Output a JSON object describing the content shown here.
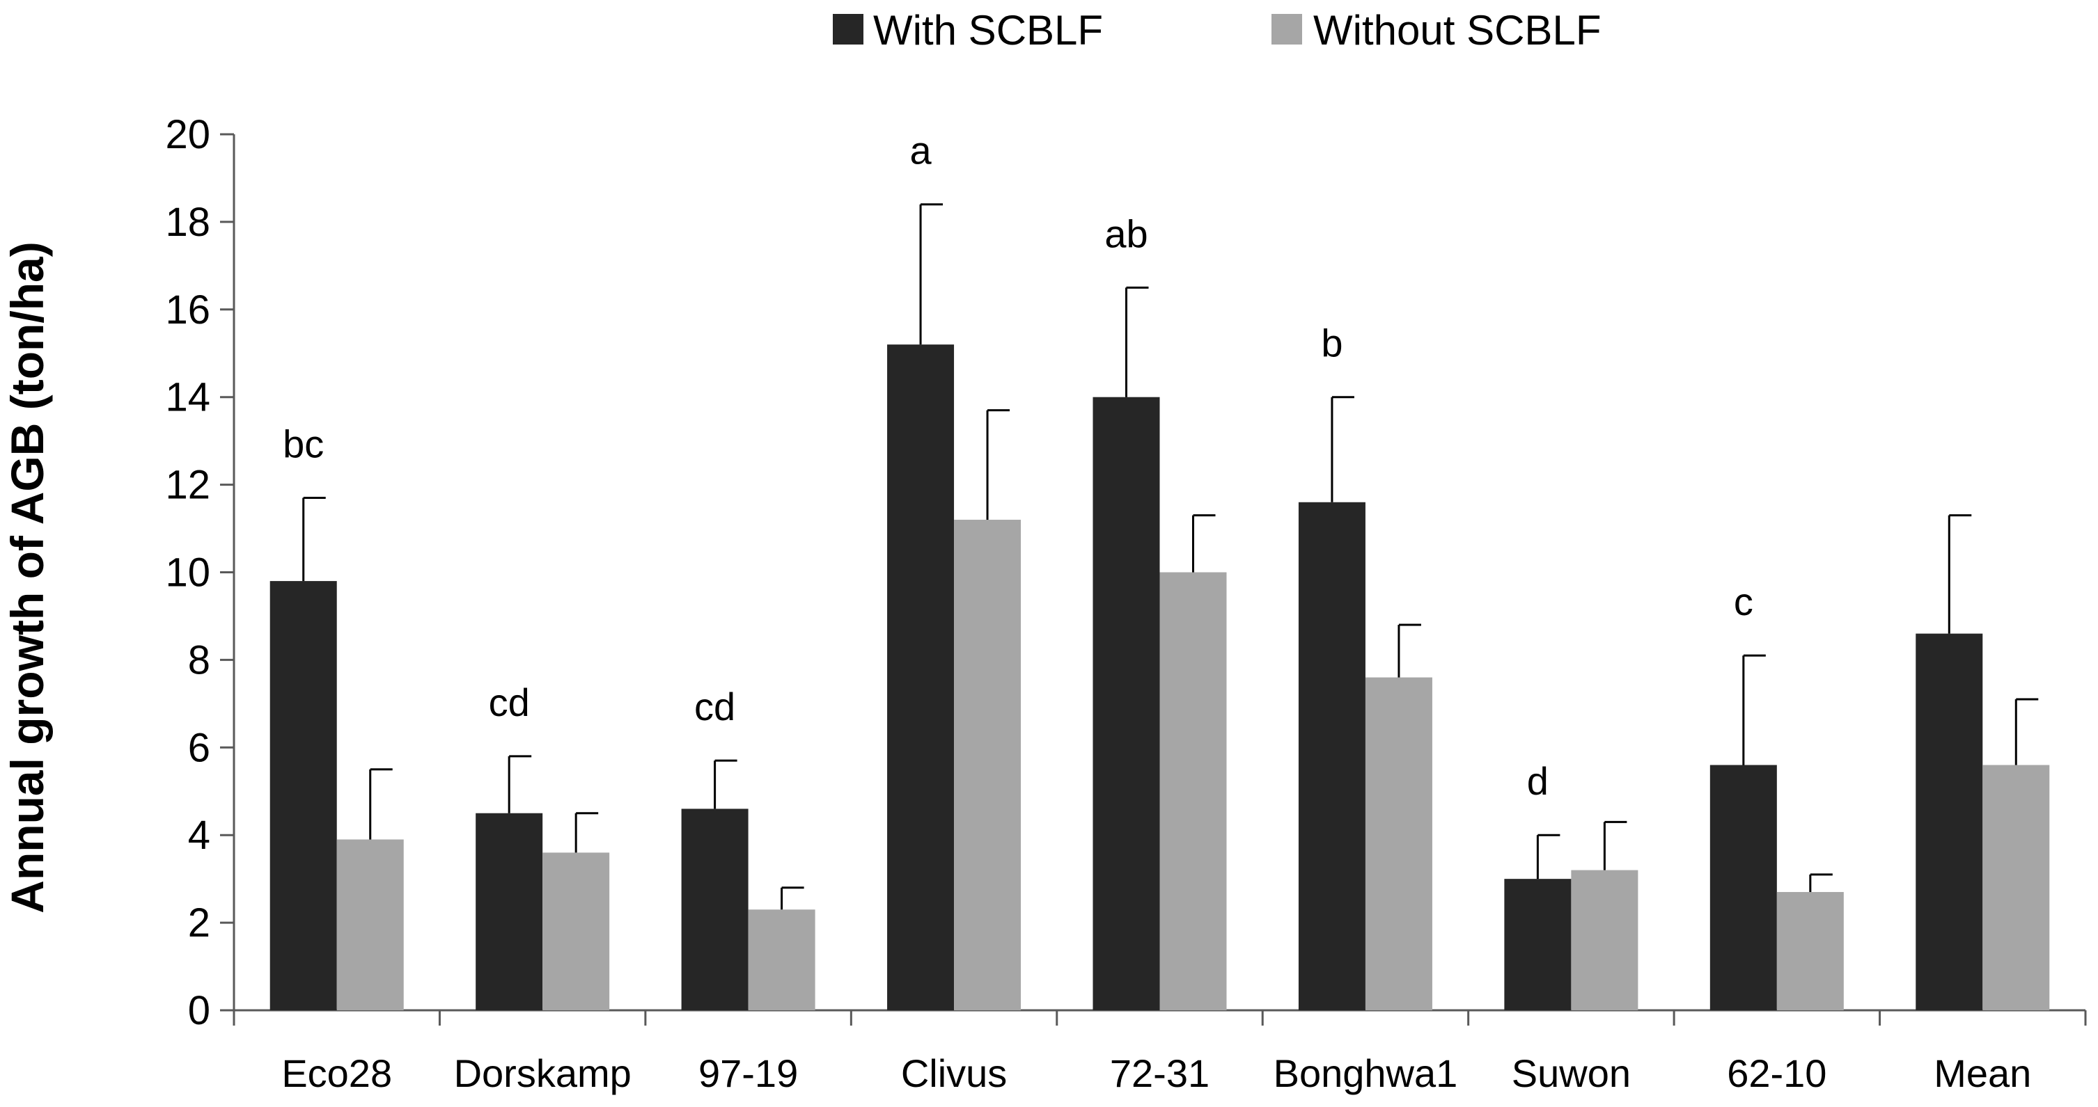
{
  "chart_data": {
    "type": "bar",
    "title": "",
    "xlabel": "",
    "ylabel": "Annual  growth  of  AGB  (ton/ha)",
    "ylim": [
      0,
      20
    ],
    "yticks": [
      0,
      2,
      4,
      6,
      8,
      10,
      12,
      14,
      16,
      18,
      20
    ],
    "grid": false,
    "legend_position": "top-center",
    "categories": [
      "Eco28",
      "Dorskamp",
      "97-19",
      "Clivus",
      "72-31",
      "Bonghwa1",
      "Suwon",
      "62-10",
      "Mean"
    ],
    "series": [
      {
        "name": "With   SCBLF",
        "color": "#262626",
        "values": [
          9.8,
          4.5,
          4.6,
          15.2,
          14.0,
          11.6,
          3.0,
          5.6,
          8.6
        ],
        "error": [
          1.9,
          1.3,
          1.1,
          3.2,
          2.5,
          2.4,
          1.0,
          2.5,
          2.7
        ]
      },
      {
        "name": "Without   SCBLF",
        "color": "#a6a6a6",
        "values": [
          3.9,
          3.6,
          2.3,
          11.2,
          10.0,
          7.6,
          3.2,
          2.7,
          5.6
        ],
        "error": [
          1.6,
          0.9,
          0.5,
          2.5,
          1.3,
          1.2,
          1.1,
          0.4,
          1.5
        ]
      }
    ],
    "annotations": [
      "bc",
      "cd",
      "cd",
      "a",
      "ab",
      "b",
      "d",
      "c",
      ""
    ],
    "colors": {
      "axis": "#595959",
      "text": "#000000"
    }
  }
}
